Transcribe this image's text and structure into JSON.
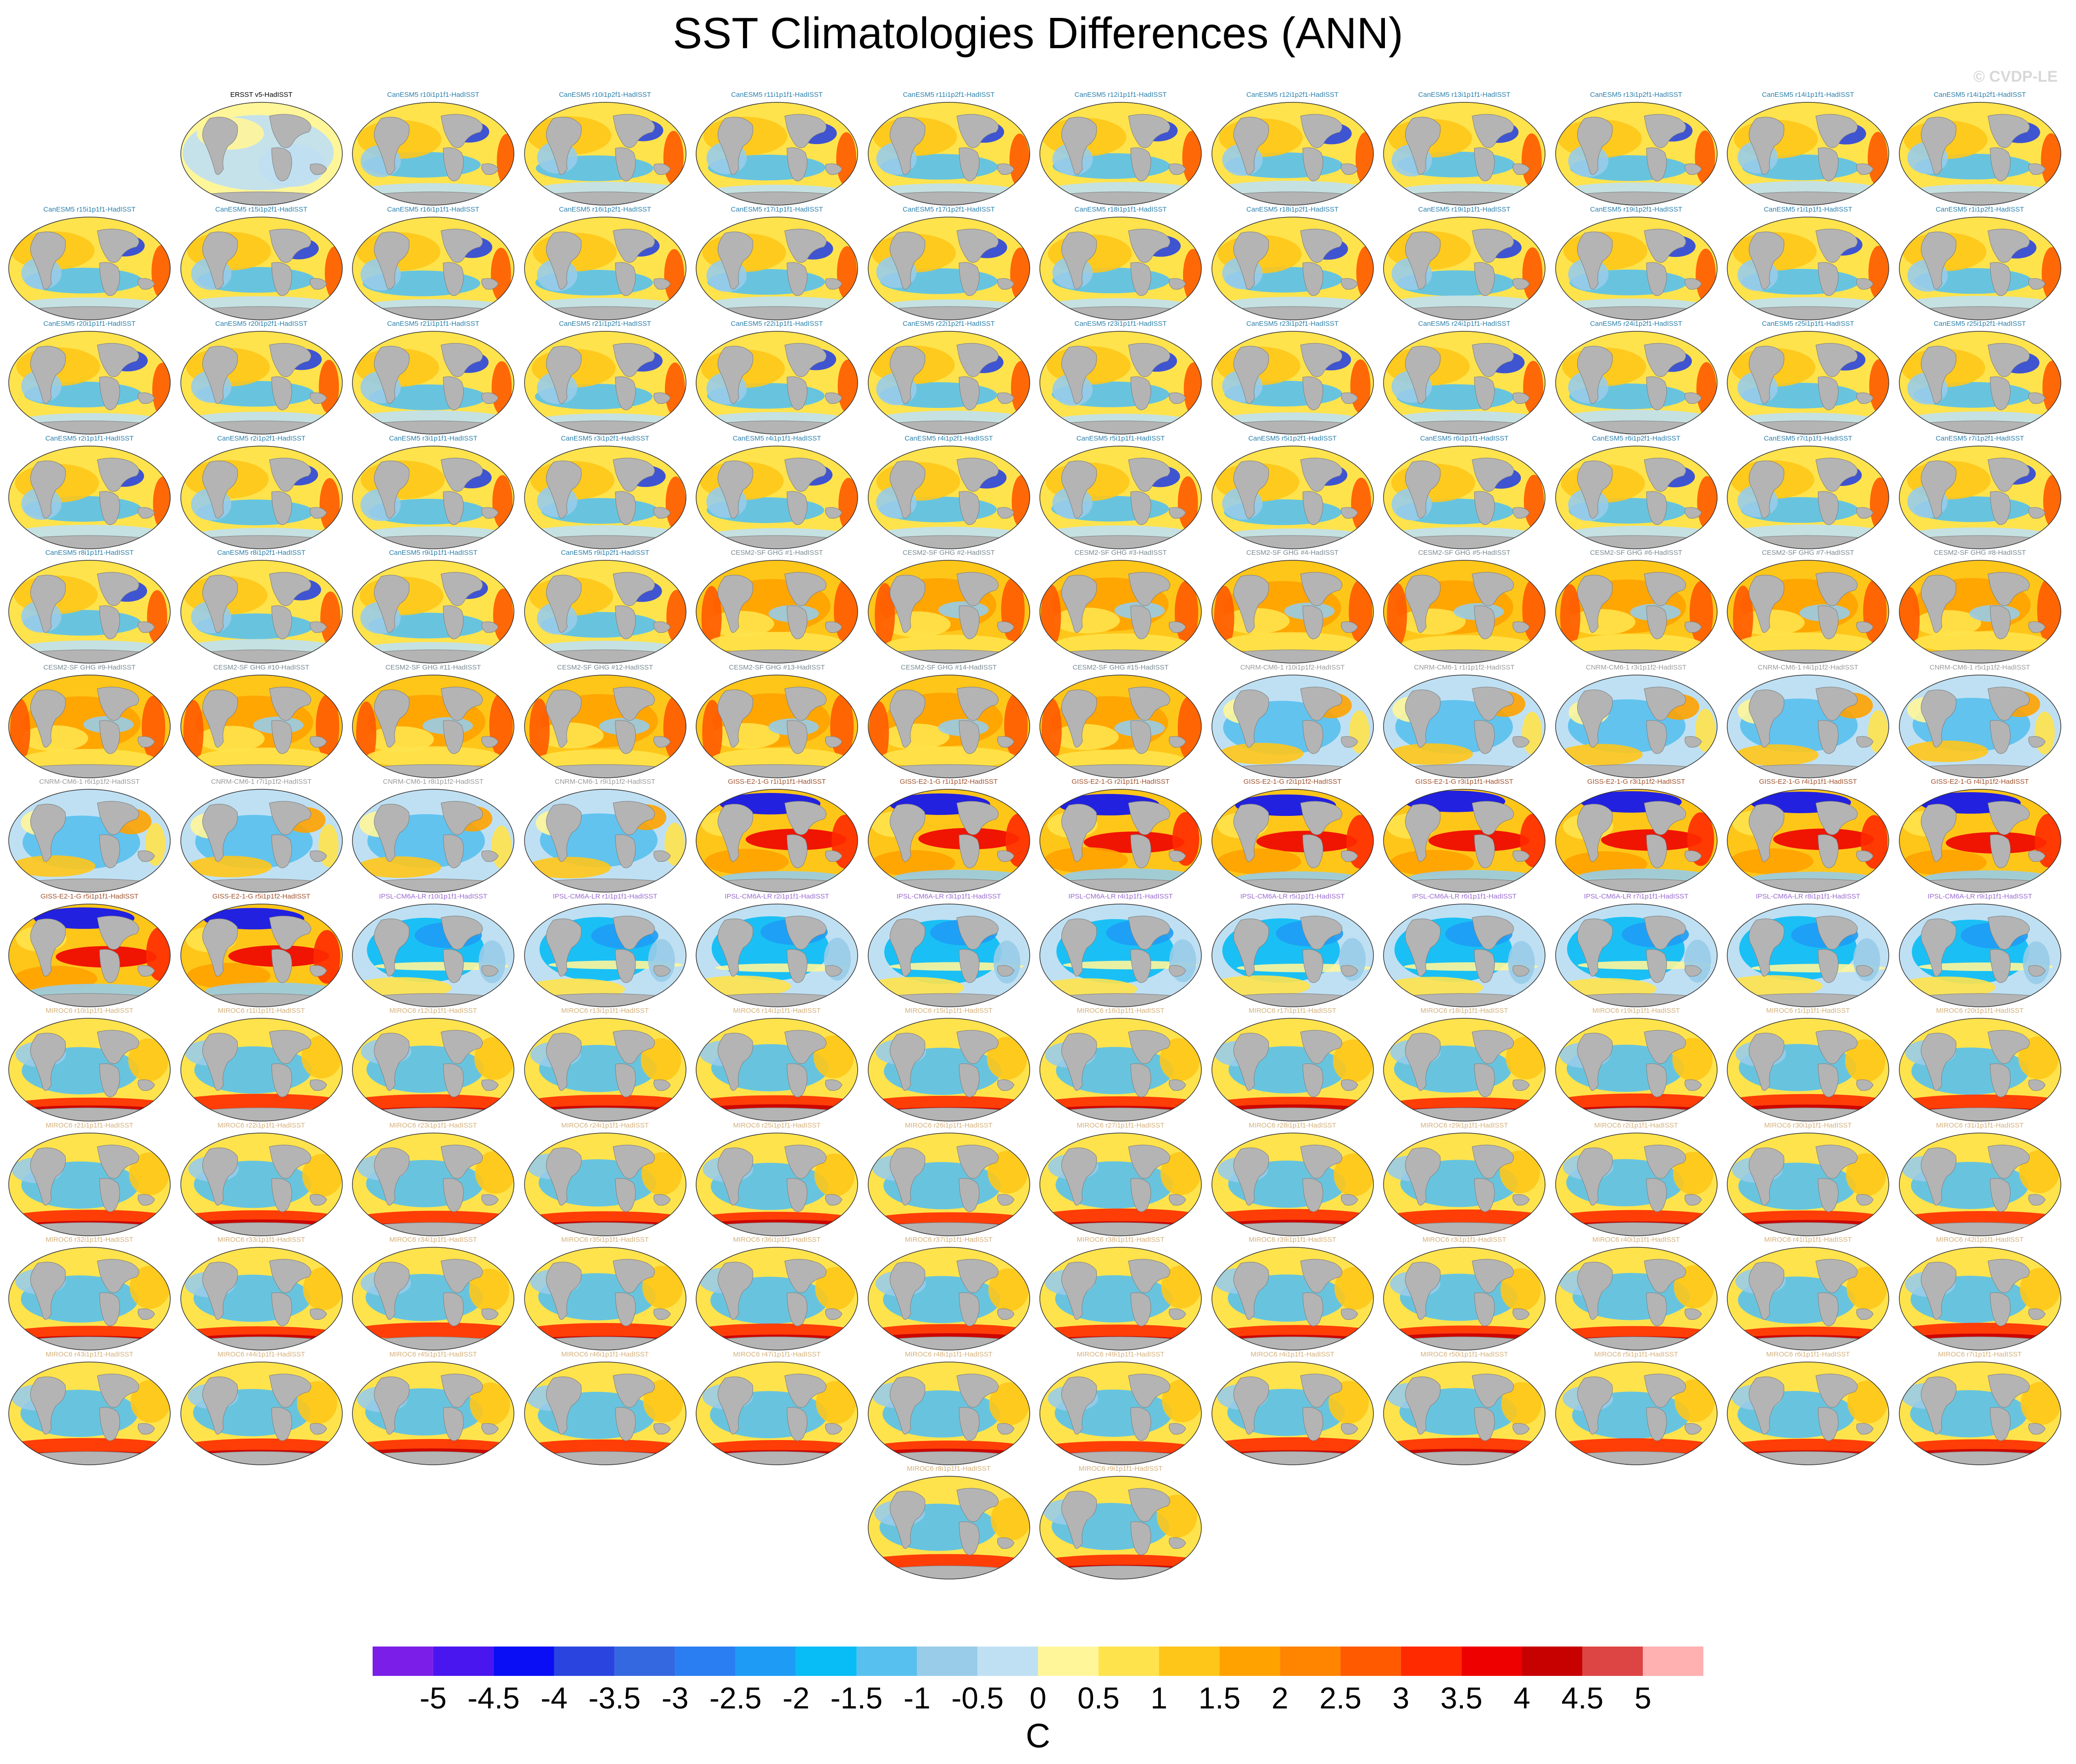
{
  "title": "SST Climatologies Differences (ANN)",
  "credit": "© CVDP-LE",
  "chart_data": {
    "type": "heatmap",
    "title": "SST Climatologies Differences (ANN)",
    "units": "C",
    "colorbar": {
      "colors": [
        "#7b1ee8",
        "#4a16f0",
        "#0a0ef5",
        "#2a44e0",
        "#3468e0",
        "#2a7ef2",
        "#1e9cf5",
        "#08bcf5",
        "#58c0ee",
        "#98cce9",
        "#bfe0f3",
        "#fff69a",
        "#ffe34d",
        "#ffc61a",
        "#ffa200",
        "#ff8400",
        "#ff5a00",
        "#ff2a00",
        "#ee0000",
        "#c70000",
        "#dd4444",
        "#ffb0b0"
      ],
      "tick_labels": [
        "-5",
        "-4.5",
        "-4",
        "-3.5",
        "-3",
        "-2.5",
        "-2",
        "-1.5",
        "-1",
        "-0.5",
        "0",
        "0.5",
        "1",
        "1.5",
        "2",
        "2.5",
        "3",
        "3.5",
        "4",
        "4.5",
        "5"
      ]
    },
    "panels": [
      {
        "title": "ERSST v5-HadISST",
        "color": "#000000",
        "pattern": "obs"
      },
      {
        "title": "CanESM5 r10i1p1f1-HadISST",
        "color": "#2a7faa",
        "pattern": "canesm"
      },
      {
        "title": "CanESM5 r10i1p2f1-HadISST",
        "color": "#2a7faa",
        "pattern": "canesm"
      },
      {
        "title": "CanESM5 r11i1p1f1-HadISST",
        "color": "#2a7faa",
        "pattern": "canesm"
      },
      {
        "title": "CanESM5 r11i1p2f1-HadISST",
        "color": "#2a7faa",
        "pattern": "canesm"
      },
      {
        "title": "CanESM5 r12i1p1f1-HadISST",
        "color": "#2a7faa",
        "pattern": "canesm"
      },
      {
        "title": "CanESM5 r12i1p2f1-HadISST",
        "color": "#2a7faa",
        "pattern": "canesm"
      },
      {
        "title": "CanESM5 r13i1p1f1-HadISST",
        "color": "#2a7faa",
        "pattern": "canesm"
      },
      {
        "title": "CanESM5 r13i1p2f1-HadISST",
        "color": "#2a7faa",
        "pattern": "canesm"
      },
      {
        "title": "CanESM5 r14i1p1f1-HadISST",
        "color": "#2a7faa",
        "pattern": "canesm"
      },
      {
        "title": "CanESM5 r14i1p2f1-HadISST",
        "color": "#2a7faa",
        "pattern": "canesm"
      },
      {
        "title": "CanESM5 r15i1p1f1-HadISST",
        "color": "#2a7faa",
        "pattern": "canesm"
      },
      {
        "title": "CanESM5 r15i1p2f1-HadISST",
        "color": "#2a7faa",
        "pattern": "canesm"
      },
      {
        "title": "CanESM5 r16i1p1f1-HadISST",
        "color": "#2a7faa",
        "pattern": "canesm"
      },
      {
        "title": "CanESM5 r16i1p2f1-HadISST",
        "color": "#2a7faa",
        "pattern": "canesm"
      },
      {
        "title": "CanESM5 r17i1p1f1-HadISST",
        "color": "#2a7faa",
        "pattern": "canesm"
      },
      {
        "title": "CanESM5 r17i1p2f1-HadISST",
        "color": "#2a7faa",
        "pattern": "canesm"
      },
      {
        "title": "CanESM5 r18i1p1f1-HadISST",
        "color": "#2a7faa",
        "pattern": "canesm"
      },
      {
        "title": "CanESM5 r18i1p2f1-HadISST",
        "color": "#2a7faa",
        "pattern": "canesm"
      },
      {
        "title": "CanESM5 r19i1p1f1-HadISST",
        "color": "#2a7faa",
        "pattern": "canesm"
      },
      {
        "title": "CanESM5 r19i1p2f1-HadISST",
        "color": "#2a7faa",
        "pattern": "canesm"
      },
      {
        "title": "CanESM5 r1i1p1f1-HadISST",
        "color": "#2a7faa",
        "pattern": "canesm"
      },
      {
        "title": "CanESM5 r1i1p2f1-HadISST",
        "color": "#2a7faa",
        "pattern": "canesm"
      },
      {
        "title": "CanESM5 r20i1p1f1-HadISST",
        "color": "#2a7faa",
        "pattern": "canesm"
      },
      {
        "title": "CanESM5 r20i1p2f1-HadISST",
        "color": "#2a7faa",
        "pattern": "canesm"
      },
      {
        "title": "CanESM5 r21i1p1f1-HadISST",
        "color": "#2a7faa",
        "pattern": "canesm"
      },
      {
        "title": "CanESM5 r21i1p2f1-HadISST",
        "color": "#2a7faa",
        "pattern": "canesm"
      },
      {
        "title": "CanESM5 r22i1p1f1-HadISST",
        "color": "#2a7faa",
        "pattern": "canesm"
      },
      {
        "title": "CanESM5 r22i1p2f1-HadISST",
        "color": "#2a7faa",
        "pattern": "canesm"
      },
      {
        "title": "CanESM5 r23i1p1f1-HadISST",
        "color": "#2a7faa",
        "pattern": "canesm"
      },
      {
        "title": "CanESM5 r23i1p2f1-HadISST",
        "color": "#2a7faa",
        "pattern": "canesm"
      },
      {
        "title": "CanESM5 r24i1p1f1-HadISST",
        "color": "#2a7faa",
        "pattern": "canesm"
      },
      {
        "title": "CanESM5 r24i1p2f1-HadISST",
        "color": "#2a7faa",
        "pattern": "canesm"
      },
      {
        "title": "CanESM5 r25i1p1f1-HadISST",
        "color": "#2a7faa",
        "pattern": "canesm"
      },
      {
        "title": "CanESM5 r25i1p2f1-HadISST",
        "color": "#2a7faa",
        "pattern": "canesm"
      },
      {
        "title": "CanESM5 r2i1p1f1-HadISST",
        "color": "#2a7faa",
        "pattern": "canesm"
      },
      {
        "title": "CanESM5 r2i1p2f1-HadISST",
        "color": "#2a7faa",
        "pattern": "canesm"
      },
      {
        "title": "CanESM5 r3i1p1f1-HadISST",
        "color": "#2a7faa",
        "pattern": "canesm"
      },
      {
        "title": "CanESM5 r3i1p2f1-HadISST",
        "color": "#2a7faa",
        "pattern": "canesm"
      },
      {
        "title": "CanESM5 r4i1p1f1-HadISST",
        "color": "#2a7faa",
        "pattern": "canesm"
      },
      {
        "title": "CanESM5 r4i1p2f1-HadISST",
        "color": "#2a7faa",
        "pattern": "canesm"
      },
      {
        "title": "CanESM5 r5i1p1f1-HadISST",
        "color": "#2a7faa",
        "pattern": "canesm"
      },
      {
        "title": "CanESM5 r5i1p2f1-HadISST",
        "color": "#2a7faa",
        "pattern": "canesm"
      },
      {
        "title": "CanESM5 r6i1p1f1-HadISST",
        "color": "#2a7faa",
        "pattern": "canesm"
      },
      {
        "title": "CanESM5 r6i1p2f1-HadISST",
        "color": "#2a7faa",
        "pattern": "canesm"
      },
      {
        "title": "CanESM5 r7i1p1f1-HadISST",
        "color": "#2a7faa",
        "pattern": "canesm"
      },
      {
        "title": "CanESM5 r7i1p2f1-HadISST",
        "color": "#2a7faa",
        "pattern": "canesm"
      },
      {
        "title": "CanESM5 r8i1p1f1-HadISST",
        "color": "#2a7faa",
        "pattern": "canesm"
      },
      {
        "title": "CanESM5 r8i1p2f1-HadISST",
        "color": "#2a7faa",
        "pattern": "canesm"
      },
      {
        "title": "CanESM5 r9i1p1f1-HadISST",
        "color": "#2a7faa",
        "pattern": "canesm"
      },
      {
        "title": "CanESM5 r9i1p2f1-HadISST",
        "color": "#2a7faa",
        "pattern": "canesm"
      },
      {
        "title": "CESM2-SF GHG #1-HadISST",
        "color": "#7a8a92",
        "pattern": "cesm"
      },
      {
        "title": "CESM2-SF GHG #2-HadISST",
        "color": "#7a8a92",
        "pattern": "cesm"
      },
      {
        "title": "CESM2-SF GHG #3-HadISST",
        "color": "#7a8a92",
        "pattern": "cesm"
      },
      {
        "title": "CESM2-SF GHG #4-HadISST",
        "color": "#7a8a92",
        "pattern": "cesm"
      },
      {
        "title": "CESM2-SF GHG #5-HadISST",
        "color": "#7a8a92",
        "pattern": "cesm"
      },
      {
        "title": "CESM2-SF GHG #6-HadISST",
        "color": "#7a8a92",
        "pattern": "cesm"
      },
      {
        "title": "CESM2-SF GHG #7-HadISST",
        "color": "#7a8a92",
        "pattern": "cesm"
      },
      {
        "title": "CESM2-SF GHG #8-HadISST",
        "color": "#7a8a92",
        "pattern": "cesm"
      },
      {
        "title": "CESM2-SF GHG #9-HadISST",
        "color": "#7a8a92",
        "pattern": "cesm"
      },
      {
        "title": "CESM2-SF GHG #10-HadISST",
        "color": "#7a8a92",
        "pattern": "cesm"
      },
      {
        "title": "CESM2-SF GHG #11-HadISST",
        "color": "#7a8a92",
        "pattern": "cesm"
      },
      {
        "title": "CESM2-SF GHG #12-HadISST",
        "color": "#7a8a92",
        "pattern": "cesm"
      },
      {
        "title": "CESM2-SF GHG #13-HadISST",
        "color": "#7a8a92",
        "pattern": "cesm"
      },
      {
        "title": "CESM2-SF GHG #14-HadISST",
        "color": "#7a8a92",
        "pattern": "cesm"
      },
      {
        "title": "CESM2-SF GHG #15-HadISST",
        "color": "#7a8a92",
        "pattern": "cesm"
      },
      {
        "title": "CNRM-CM6-1 r10i1p1f2-HadISST",
        "color": "#9a9a9a",
        "pattern": "cnrm"
      },
      {
        "title": "CNRM-CM6-1 r1i1p1f2-HadISST",
        "color": "#9a9a9a",
        "pattern": "cnrm"
      },
      {
        "title": "CNRM-CM6-1 r3i1p1f2-HadISST",
        "color": "#9a9a9a",
        "pattern": "cnrm"
      },
      {
        "title": "CNRM-CM6-1 r4i1p1f2-HadISST",
        "color": "#9a9a9a",
        "pattern": "cnrm"
      },
      {
        "title": "CNRM-CM6-1 r5i1p1f2-HadISST",
        "color": "#9a9a9a",
        "pattern": "cnrm"
      },
      {
        "title": "CNRM-CM6-1 r6i1p1f2-HadISST",
        "color": "#9a9a9a",
        "pattern": "cnrm"
      },
      {
        "title": "CNRM-CM6-1 r7i1p1f2-HadISST",
        "color": "#9a9a9a",
        "pattern": "cnrm"
      },
      {
        "title": "CNRM-CM6-1 r8i1p1f2-HadISST",
        "color": "#9a9a9a",
        "pattern": "cnrm"
      },
      {
        "title": "CNRM-CM6-1 r9i1p1f2-HadISST",
        "color": "#9a9a9a",
        "pattern": "cnrm"
      },
      {
        "title": "GISS-E2-1-G r1i1p1f1-HadISST",
        "color": "#a0522d",
        "pattern": "giss"
      },
      {
        "title": "GISS-E2-1-G r1i1p1f2-HadISST",
        "color": "#a0522d",
        "pattern": "giss"
      },
      {
        "title": "GISS-E2-1-G r2i1p1f1-HadISST",
        "color": "#a0522d",
        "pattern": "giss"
      },
      {
        "title": "GISS-E2-1-G r2i1p1f2-HadISST",
        "color": "#a0522d",
        "pattern": "giss"
      },
      {
        "title": "GISS-E2-1-G r3i1p1f1-HadISST",
        "color": "#a0522d",
        "pattern": "giss"
      },
      {
        "title": "GISS-E2-1-G r3i1p1f2-HadISST",
        "color": "#a0522d",
        "pattern": "giss"
      },
      {
        "title": "GISS-E2-1-G r4i1p1f1-HadISST",
        "color": "#a0522d",
        "pattern": "giss"
      },
      {
        "title": "GISS-E2-1-G r4i1p1f2-HadISST",
        "color": "#a0522d",
        "pattern": "giss"
      },
      {
        "title": "GISS-E2-1-G r5i1p1f1-HadISST",
        "color": "#a0522d",
        "pattern": "giss"
      },
      {
        "title": "GISS-E2-1-G r5i1p1f2-HadISST",
        "color": "#a0522d",
        "pattern": "giss"
      },
      {
        "title": "IPSL-CM6A-LR r10i1p1f1-HadISST",
        "color": "#9a6ad0",
        "pattern": "ipsl"
      },
      {
        "title": "IPSL-CM6A-LR r1i1p1f1-HadISST",
        "color": "#9a6ad0",
        "pattern": "ipsl"
      },
      {
        "title": "IPSL-CM6A-LR r2i1p1f1-HadISST",
        "color": "#9a6ad0",
        "pattern": "ipsl"
      },
      {
        "title": "IPSL-CM6A-LR r3i1p1f1-HadISST",
        "color": "#9a6ad0",
        "pattern": "ipsl"
      },
      {
        "title": "IPSL-CM6A-LR r4i1p1f1-HadISST",
        "color": "#9a6ad0",
        "pattern": "ipsl"
      },
      {
        "title": "IPSL-CM6A-LR r5i1p1f1-HadISST",
        "color": "#9a6ad0",
        "pattern": "ipsl"
      },
      {
        "title": "IPSL-CM6A-LR r6i1p1f1-HadISST",
        "color": "#9a6ad0",
        "pattern": "ipsl"
      },
      {
        "title": "IPSL-CM6A-LR r7i1p1f1-HadISST",
        "color": "#9a6ad0",
        "pattern": "ipsl"
      },
      {
        "title": "IPSL-CM6A-LR r8i1p1f1-HadISST",
        "color": "#9a6ad0",
        "pattern": "ipsl"
      },
      {
        "title": "IPSL-CM6A-LR r9i1p1f1-HadISST",
        "color": "#9a6ad0",
        "pattern": "ipsl"
      },
      {
        "title": "MIROC6 r10i1p1f1-HadISST",
        "color": "#d4b07a",
        "pattern": "miroc"
      },
      {
        "title": "MIROC6 r11i1p1f1-HadISST",
        "color": "#d4b07a",
        "pattern": "miroc"
      },
      {
        "title": "MIROC6 r12i1p1f1-HadISST",
        "color": "#d4b07a",
        "pattern": "miroc"
      },
      {
        "title": "MIROC6 r13i1p1f1-HadISST",
        "color": "#d4b07a",
        "pattern": "miroc"
      },
      {
        "title": "MIROC6 r14i1p1f1-HadISST",
        "color": "#d4b07a",
        "pattern": "miroc"
      },
      {
        "title": "MIROC6 r15i1p1f1-HadISST",
        "color": "#d4b07a",
        "pattern": "miroc"
      },
      {
        "title": "MIROC6 r16i1p1f1-HadISST",
        "color": "#d4b07a",
        "pattern": "miroc"
      },
      {
        "title": "MIROC6 r17i1p1f1-HadISST",
        "color": "#d4b07a",
        "pattern": "miroc"
      },
      {
        "title": "MIROC6 r18i1p1f1-HadISST",
        "color": "#d4b07a",
        "pattern": "miroc"
      },
      {
        "title": "MIROC6 r19i1p1f1-HadISST",
        "color": "#d4b07a",
        "pattern": "miroc"
      },
      {
        "title": "MIROC6 r1i1p1f1-HadISST",
        "color": "#d4b07a",
        "pattern": "miroc"
      },
      {
        "title": "MIROC6 r20i1p1f1-HadISST",
        "color": "#d4b07a",
        "pattern": "miroc"
      },
      {
        "title": "MIROC6 r21i1p1f1-HadISST",
        "color": "#d4b07a",
        "pattern": "miroc"
      },
      {
        "title": "MIROC6 r22i1p1f1-HadISST",
        "color": "#d4b07a",
        "pattern": "miroc"
      },
      {
        "title": "MIROC6 r23i1p1f1-HadISST",
        "color": "#d4b07a",
        "pattern": "miroc"
      },
      {
        "title": "MIROC6 r24i1p1f1-HadISST",
        "color": "#d4b07a",
        "pattern": "miroc"
      },
      {
        "title": "MIROC6 r25i1p1f1-HadISST",
        "color": "#d4b07a",
        "pattern": "miroc"
      },
      {
        "title": "MIROC6 r26i1p1f1-HadISST",
        "color": "#d4b07a",
        "pattern": "miroc"
      },
      {
        "title": "MIROC6 r27i1p1f1-HadISST",
        "color": "#d4b07a",
        "pattern": "miroc"
      },
      {
        "title": "MIROC6 r28i1p1f1-HadISST",
        "color": "#d4b07a",
        "pattern": "miroc"
      },
      {
        "title": "MIROC6 r29i1p1f1-HadISST",
        "color": "#d4b07a",
        "pattern": "miroc"
      },
      {
        "title": "MIROC6 r2i1p1f1-HadISST",
        "color": "#d4b07a",
        "pattern": "miroc"
      },
      {
        "title": "MIROC6 r30i1p1f1-HadISST",
        "color": "#d4b07a",
        "pattern": "miroc"
      },
      {
        "title": "MIROC6 r31i1p1f1-HadISST",
        "color": "#d4b07a",
        "pattern": "miroc"
      },
      {
        "title": "MIROC6 r32i1p1f1-HadISST",
        "color": "#d4b07a",
        "pattern": "miroc"
      },
      {
        "title": "MIROC6 r33i1p1f1-HadISST",
        "color": "#d4b07a",
        "pattern": "miroc"
      },
      {
        "title": "MIROC6 r34i1p1f1-HadISST",
        "color": "#d4b07a",
        "pattern": "miroc"
      },
      {
        "title": "MIROC6 r35i1p1f1-HadISST",
        "color": "#d4b07a",
        "pattern": "miroc"
      },
      {
        "title": "MIROC6 r36i1p1f1-HadISST",
        "color": "#d4b07a",
        "pattern": "miroc"
      },
      {
        "title": "MIROC6 r37i1p1f1-HadISST",
        "color": "#d4b07a",
        "pattern": "miroc"
      },
      {
        "title": "MIROC6 r38i1p1f1-HadISST",
        "color": "#d4b07a",
        "pattern": "miroc"
      },
      {
        "title": "MIROC6 r39i1p1f1-HadISST",
        "color": "#d4b07a",
        "pattern": "miroc"
      },
      {
        "title": "MIROC6 r3i1p1f1-HadISST",
        "color": "#d4b07a",
        "pattern": "miroc"
      },
      {
        "title": "MIROC6 r40i1p1f1-HadISST",
        "color": "#d4b07a",
        "pattern": "miroc"
      },
      {
        "title": "MIROC6 r41i1p1f1-HadISST",
        "color": "#d4b07a",
        "pattern": "miroc"
      },
      {
        "title": "MIROC6 r42i1p1f1-HadISST",
        "color": "#d4b07a",
        "pattern": "miroc"
      },
      {
        "title": "MIROC6 r43i1p1f1-HadISST",
        "color": "#d4b07a",
        "pattern": "miroc"
      },
      {
        "title": "MIROC6 r44i1p1f1-HadISST",
        "color": "#d4b07a",
        "pattern": "miroc"
      },
      {
        "title": "MIROC6 r45i1p1f1-HadISST",
        "color": "#d4b07a",
        "pattern": "miroc"
      },
      {
        "title": "MIROC6 r46i1p1f1-HadISST",
        "color": "#d4b07a",
        "pattern": "miroc"
      },
      {
        "title": "MIROC6 r47i1p1f1-HadISST",
        "color": "#d4b07a",
        "pattern": "miroc"
      },
      {
        "title": "MIROC6 r48i1p1f1-HadISST",
        "color": "#d4b07a",
        "pattern": "miroc"
      },
      {
        "title": "MIROC6 r49i1p1f1-HadISST",
        "color": "#d4b07a",
        "pattern": "miroc"
      },
      {
        "title": "MIROC6 r4i1p1f1-HadISST",
        "color": "#d4b07a",
        "pattern": "miroc"
      },
      {
        "title": "MIROC6 r50i1p1f1-HadISST",
        "color": "#d4b07a",
        "pattern": "miroc"
      },
      {
        "title": "MIROC6 r5i1p1f1-HadISST",
        "color": "#d4b07a",
        "pattern": "miroc"
      },
      {
        "title": "MIROC6 r6i1p1f1-HadISST",
        "color": "#d4b07a",
        "pattern": "miroc"
      },
      {
        "title": "MIROC6 r7i1p1f1-HadISST",
        "color": "#d4b07a",
        "pattern": "miroc"
      },
      {
        "title": "MIROC6 r8i1p1f1-HadISST",
        "color": "#d4b07a",
        "pattern": "miroc"
      },
      {
        "title": "MIROC6 r9i1p1f1-HadISST",
        "color": "#d4b07a",
        "pattern": "miroc"
      }
    ]
  }
}
